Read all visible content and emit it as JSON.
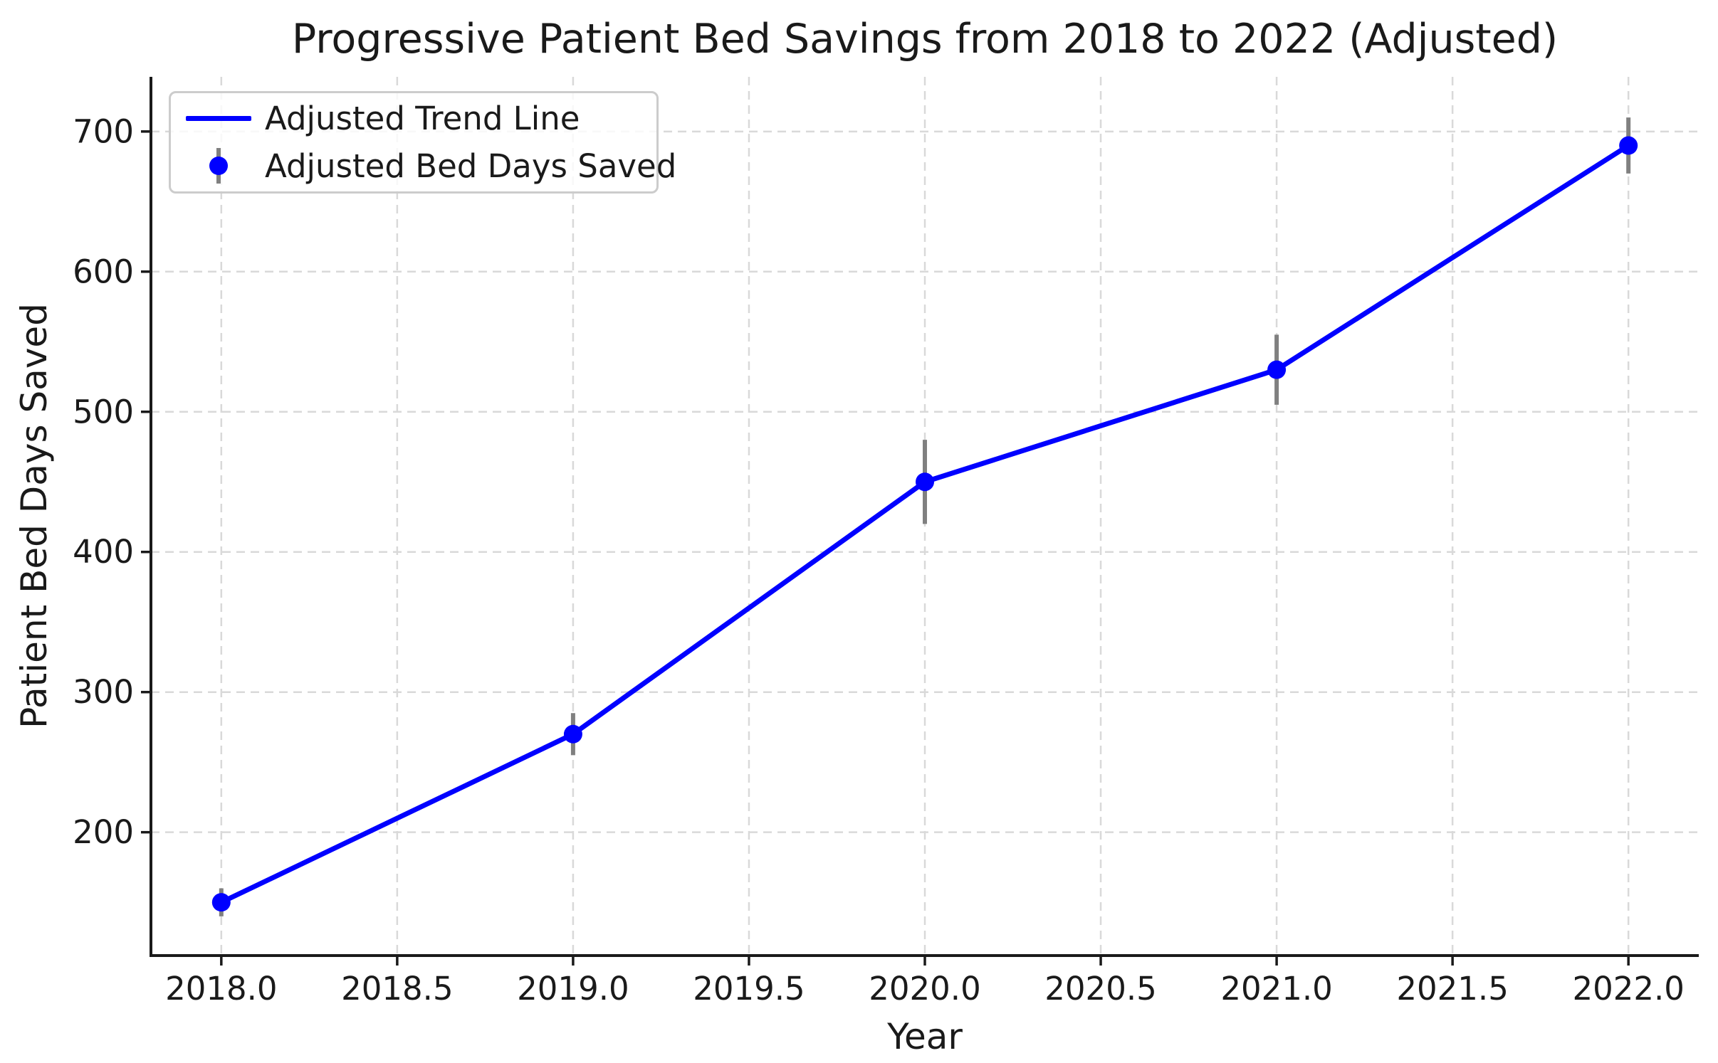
{
  "chart_data": {
    "type": "line",
    "title": "Progressive Patient Bed Savings from 2018 to 2022 (Adjusted)",
    "xlabel": "Year",
    "ylabel": "Patient Bed Days Saved",
    "x": [
      2018,
      2019,
      2020,
      2021,
      2022
    ],
    "series": [
      {
        "name": "Adjusted Bed Days Saved",
        "values": [
          150,
          270,
          450,
          530,
          690
        ],
        "errors": [
          10,
          15,
          30,
          25,
          20
        ]
      }
    ],
    "legend": [
      {
        "label": "Adjusted Trend Line",
        "sample": "line"
      },
      {
        "label": "Adjusted Bed Days Saved",
        "sample": "errorbar-marker"
      }
    ],
    "legend_position": "upper left",
    "grid": true,
    "x_ticks": {
      "values": [
        2018.0,
        2018.5,
        2019.0,
        2019.5,
        2020.0,
        2020.5,
        2021.0,
        2021.5,
        2022.0
      ],
      "labels": [
        "2018.0",
        "2018.5",
        "2019.0",
        "2019.5",
        "2020.0",
        "2020.5",
        "2021.0",
        "2021.5",
        "2022.0"
      ]
    },
    "y_ticks": {
      "values": [
        200,
        300,
        400,
        500,
        600,
        700
      ],
      "labels": [
        "200",
        "300",
        "400",
        "500",
        "600",
        "700"
      ]
    },
    "xlim": [
      2017.8,
      2022.2
    ],
    "ylim": [
      112,
      739
    ],
    "colors": {
      "line": "#0000ff",
      "marker": "#0000ff",
      "error_bar": "#808080",
      "grid": "#d9d9d9",
      "spine": "#1a1a1a",
      "text": "#1a1a1a",
      "legend_border": "#cccccc",
      "background": "#ffffff"
    }
  }
}
